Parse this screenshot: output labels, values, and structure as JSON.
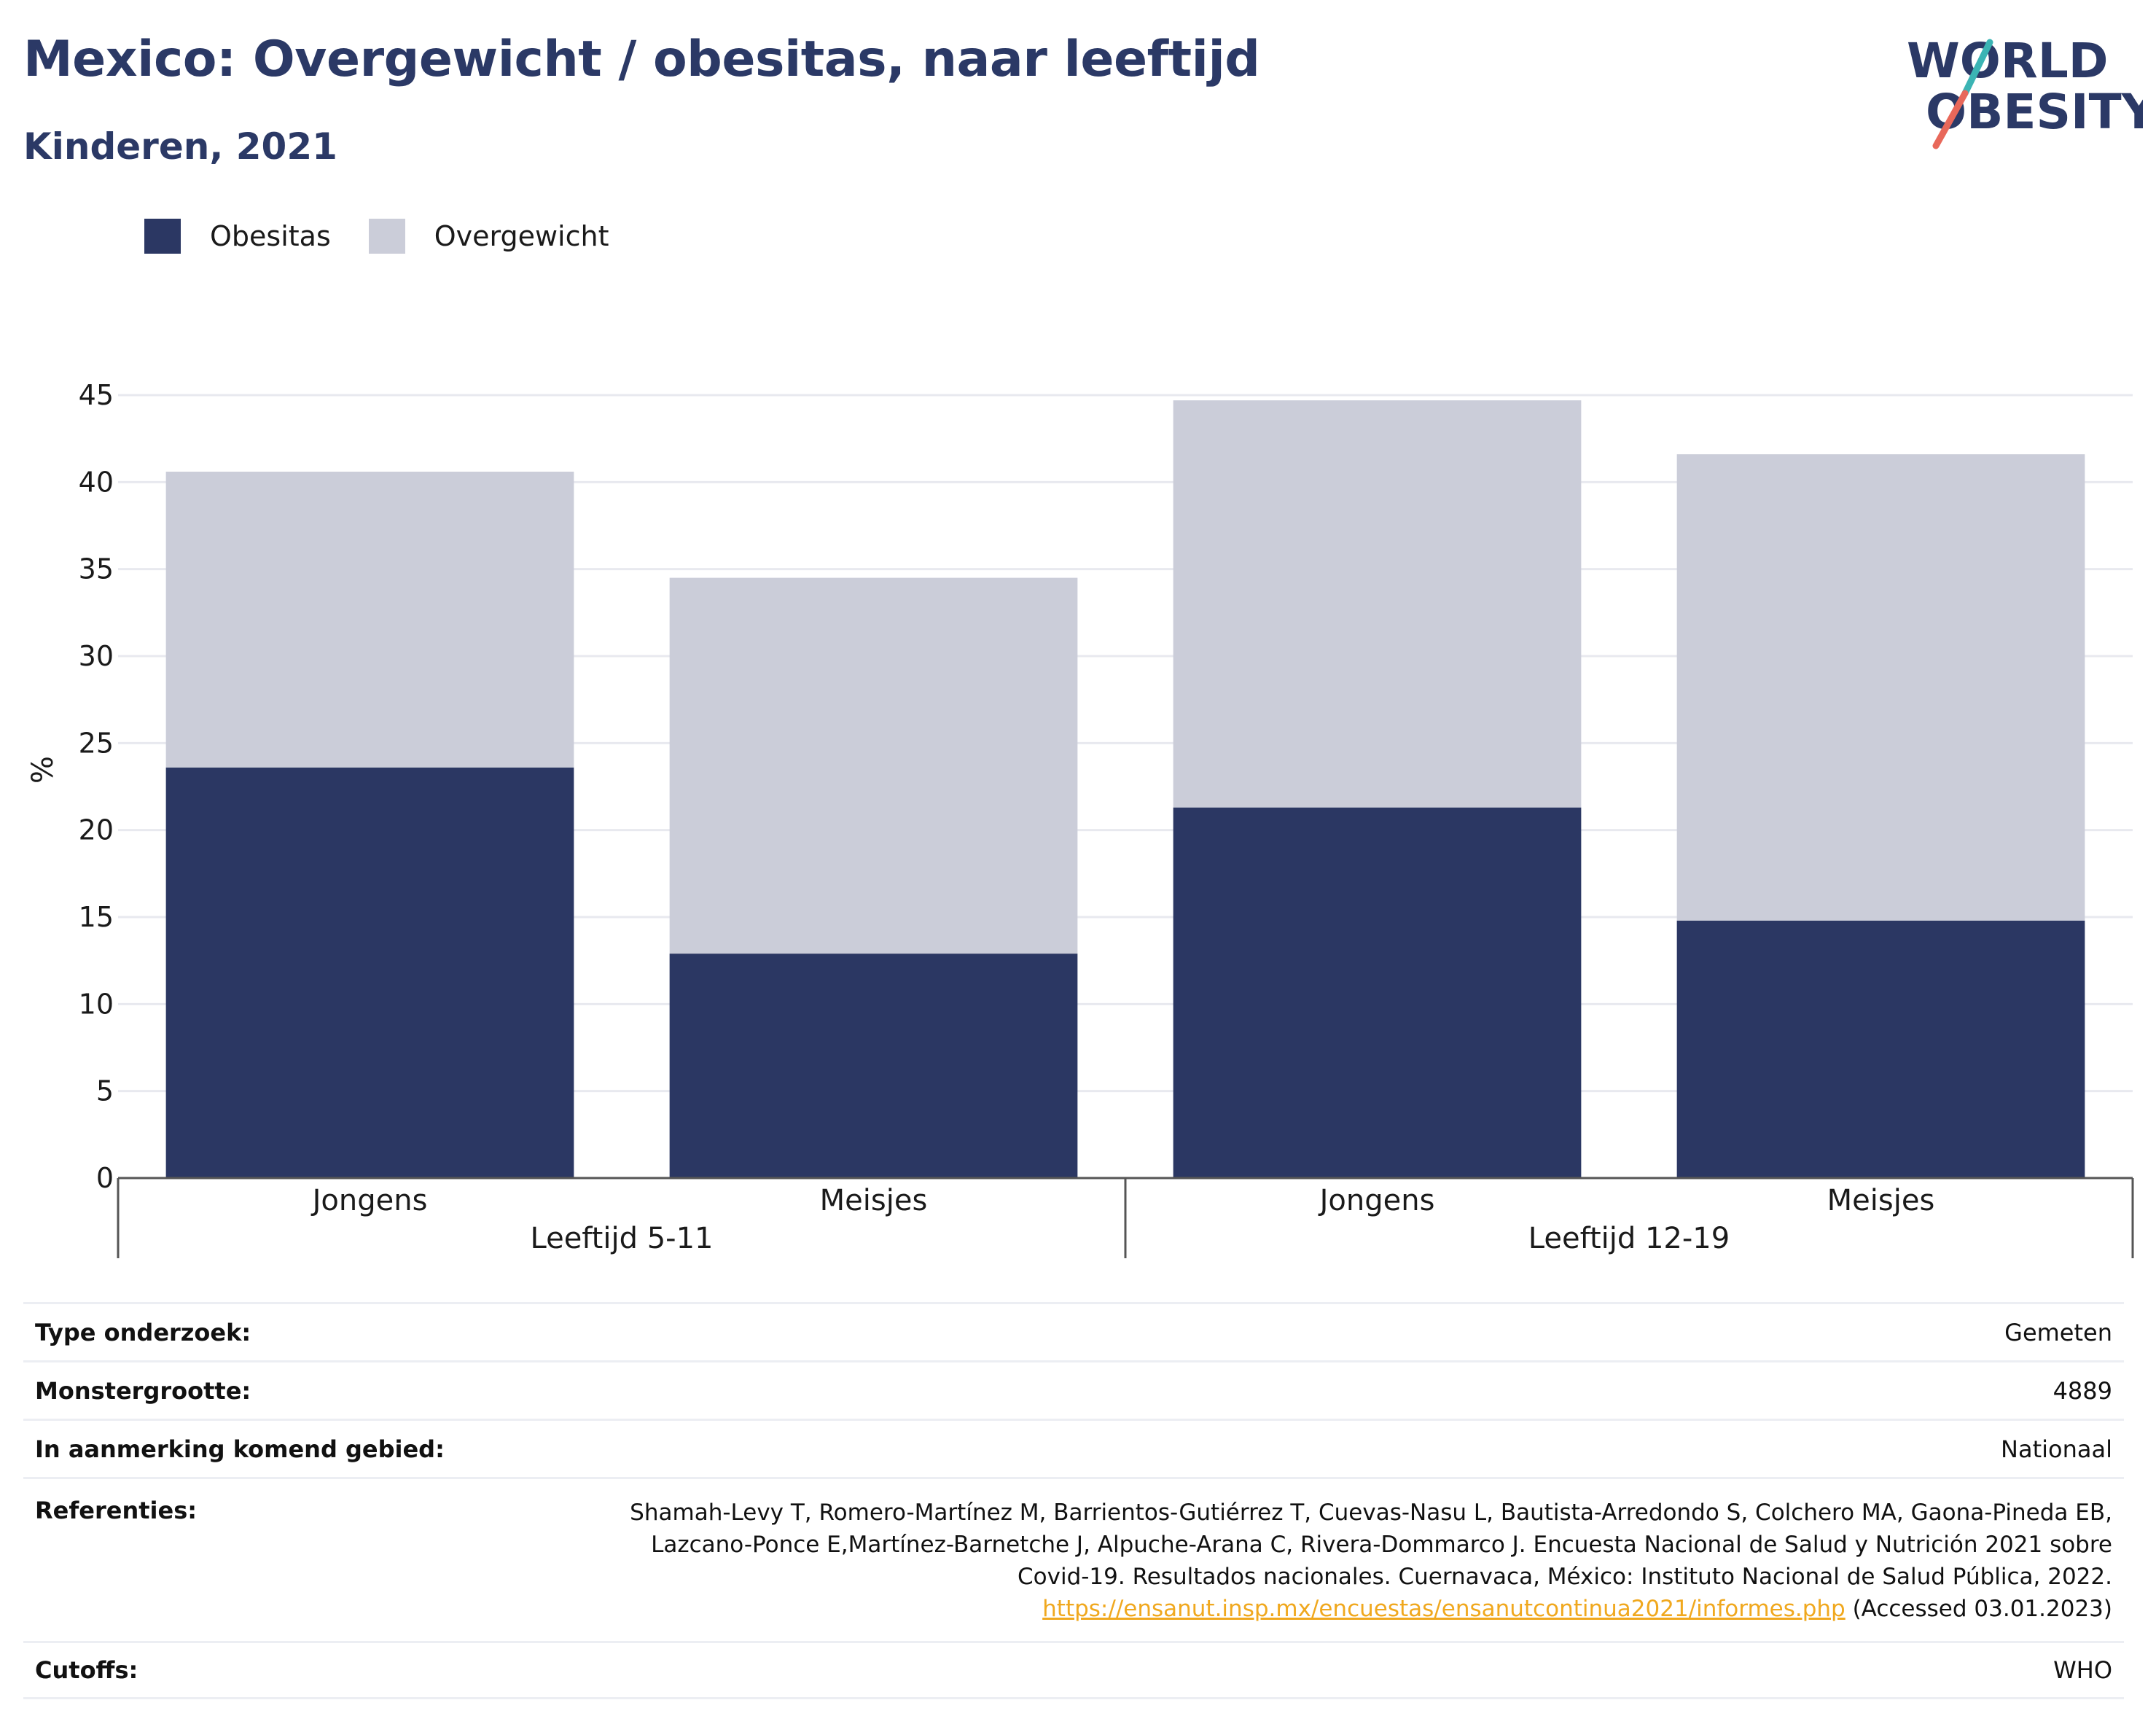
{
  "header": {
    "title": "Mexico: Overgewicht / obesitas, naar leeftijd",
    "subtitle": "Kinderen, 2021"
  },
  "logo": {
    "line1": "WORLD",
    "line2": "OBESITY",
    "colors": {
      "text": "#2b3966",
      "accent_teal": "#3bb4b4",
      "accent_red": "#e8685a"
    }
  },
  "colors": {
    "obesitas": "#2b3763",
    "overgewicht": "#cbcdd9",
    "grid": "#e8e9ef",
    "axis": "#555555"
  },
  "chart_data": {
    "type": "bar",
    "stacked": true,
    "title": "Mexico: Overgewicht / obesitas, naar leeftijd",
    "subtitle": "Kinderen, 2021",
    "ylabel": "%",
    "ylim": [
      0,
      45
    ],
    "yticks": [
      0,
      5,
      10,
      15,
      20,
      25,
      30,
      35,
      40,
      45
    ],
    "grid": true,
    "legend_position": "top-left",
    "categories": [
      "Jongens",
      "Meisjes",
      "Jongens",
      "Meisjes"
    ],
    "groups": [
      {
        "label": "Leeftijd 5-11",
        "categories": [
          0,
          1
        ]
      },
      {
        "label": "Leeftijd 12-19",
        "categories": [
          2,
          3
        ]
      }
    ],
    "series": [
      {
        "name": "Obesitas",
        "color": "#2b3763",
        "values": [
          23.6,
          12.9,
          21.3,
          14.8
        ]
      },
      {
        "name": "Overgewicht",
        "color": "#cbcdd9",
        "values": [
          17.0,
          21.6,
          23.4,
          26.8
        ]
      }
    ]
  },
  "info_table": {
    "type_label": "Type onderzoek:",
    "type_value": "Gemeten",
    "sample_label": "Monstergrootte:",
    "sample_value": "4889",
    "area_label": "In aanmerking komend gebied:",
    "area_value": "Nationaal",
    "refs_label": "Referenties:",
    "refs_line1": "Shamah-Levy T, Romero-Martínez M, Barrientos-Gutiérrez T, Cuevas-Nasu L, Bautista-Arredondo S, Colchero MA, Gaona-Pineda EB,",
    "refs_line2": "Lazcano-Ponce E,Martínez-Barnetche J, Alpuche-Arana C, Rivera-Dommarco J. Encuesta Nacional de Salud y Nutrición 2021 sobre",
    "refs_line3": "Covid-19. Resultados nacionales. Cuernavaca, México: Instituto Nacional de Salud Pública, 2022.",
    "refs_link": "https://ensanut.insp.mx/encuestas/ensanutcontinua2021/informes.php",
    "refs_accessed": " (Accessed 03.01.2023)",
    "cutoffs_label": "Cutoffs:",
    "cutoffs_value": "WHO"
  }
}
